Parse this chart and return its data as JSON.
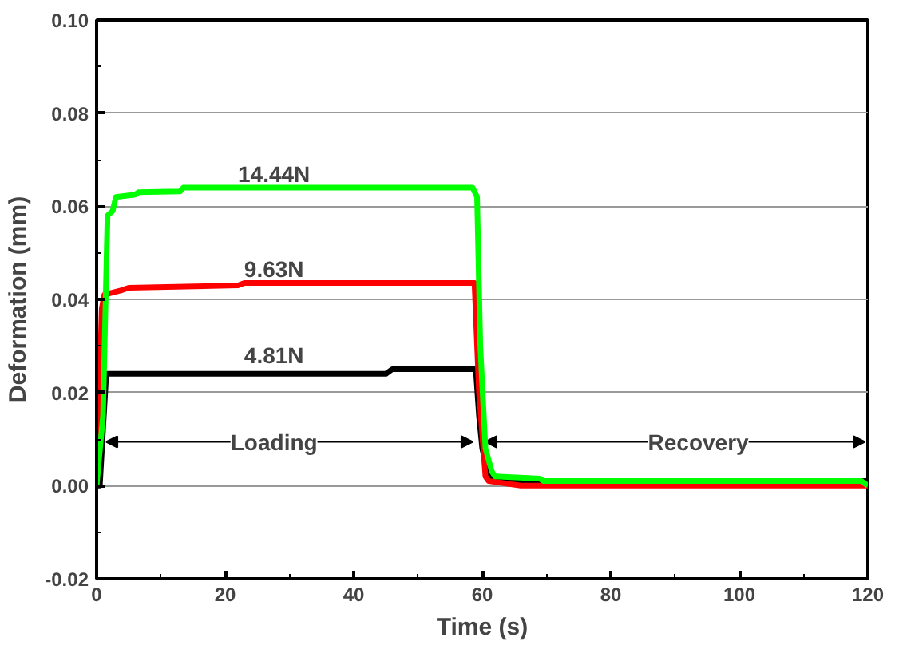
{
  "chart_data": {
    "type": "line",
    "xlabel": "Time (s)",
    "ylabel": "Deformation (mm)",
    "xlim": [
      0,
      120
    ],
    "xticks": [
      0,
      20,
      40,
      60,
      80,
      100,
      120
    ],
    "ylim": [
      -0.02,
      0.1
    ],
    "yticks": [
      {
        "value": -0.02,
        "label": "-0.02"
      },
      {
        "value": 0,
        "label": "0.00"
      },
      {
        "value": 0.02,
        "label": "0.02"
      },
      {
        "value": 0.04,
        "label": "0.04"
      },
      {
        "value": 0.06,
        "label": "0.06"
      },
      {
        "value": 0.08,
        "label": "0.08"
      },
      {
        "value": 0.1,
        "label": "0.10"
      }
    ],
    "grid": "y",
    "marker": "none",
    "line_style": "solid",
    "series": [
      {
        "name": "4.81N",
        "color": "#000000",
        "x": [
          0,
          0.5,
          1,
          1.5,
          45,
          46,
          59,
          59.5,
          60,
          61,
          64,
          120
        ],
        "values": [
          0,
          0,
          0.012,
          0.024,
          0.024,
          0.025,
          0.025,
          0.015,
          0.008,
          0.002,
          0.001,
          0.001
        ]
      },
      {
        "name": "9.63N",
        "color": "#ff0000",
        "x": [
          0,
          0.8,
          1.2,
          4,
          5,
          22,
          23,
          58.8,
          59.5,
          60.5,
          61,
          66,
          120
        ],
        "values": [
          0,
          0.038,
          0.041,
          0.042,
          0.0425,
          0.043,
          0.0435,
          0.0435,
          0.02,
          0.002,
          0.001,
          0,
          0
        ]
      },
      {
        "name": "14.44N",
        "color": "#00ff00",
        "x": [
          0,
          1,
          1.7,
          2.5,
          3,
          6,
          6.5,
          13,
          13.5,
          58.5,
          59.2,
          59.7,
          60.5,
          61.5,
          62,
          69,
          69.5,
          119,
          120
        ],
        "values": [
          0,
          0.015,
          0.058,
          0.059,
          0.062,
          0.0625,
          0.063,
          0.0632,
          0.064,
          0.064,
          0.062,
          0.03,
          0.008,
          0.003,
          0.002,
          0.0015,
          0.001,
          0.001,
          0
        ]
      }
    ],
    "annotations": [
      {
        "text": "Loading",
        "x": 58.5,
        "y": 0.0094
      },
      {
        "text": "Recovery",
        "x": 60.5,
        "y": 0.0094
      }
    ]
  }
}
